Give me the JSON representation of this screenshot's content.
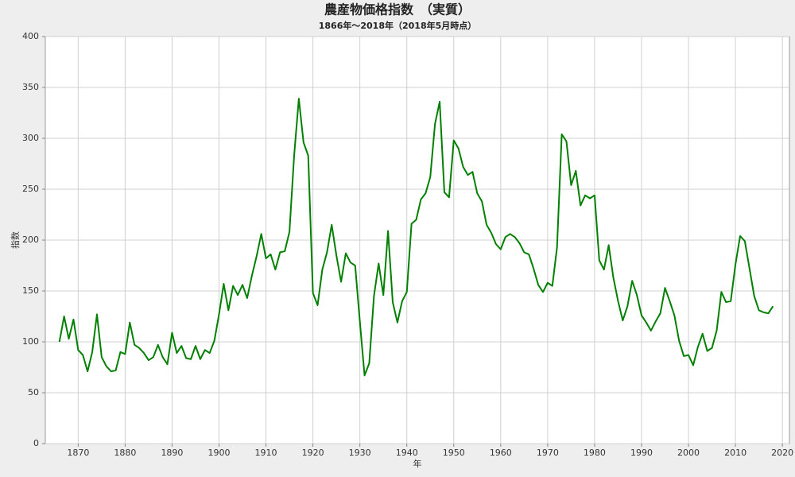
{
  "chart_data": {
    "type": "line",
    "title": "農産物価格指数　（実質）",
    "subtitle": "1866年～2018年（2018年5月時点）",
    "x_label": "年",
    "y_label": "指数",
    "x": [
      1866,
      1867,
      1868,
      1869,
      1870,
      1871,
      1872,
      1873,
      1874,
      1875,
      1876,
      1877,
      1878,
      1879,
      1880,
      1881,
      1882,
      1883,
      1884,
      1885,
      1886,
      1887,
      1888,
      1889,
      1890,
      1891,
      1892,
      1893,
      1894,
      1895,
      1896,
      1897,
      1898,
      1899,
      1900,
      1901,
      1902,
      1903,
      1904,
      1905,
      1906,
      1907,
      1908,
      1909,
      1910,
      1911,
      1912,
      1913,
      1914,
      1915,
      1916,
      1917,
      1918,
      1919,
      1920,
      1921,
      1922,
      1923,
      1924,
      1925,
      1926,
      1927,
      1928,
      1929,
      1930,
      1931,
      1932,
      1933,
      1934,
      1935,
      1936,
      1937,
      1938,
      1939,
      1940,
      1941,
      1942,
      1943,
      1944,
      1945,
      1946,
      1947,
      1948,
      1949,
      1950,
      1951,
      1952,
      1953,
      1954,
      1955,
      1956,
      1957,
      1958,
      1959,
      1960,
      1961,
      1962,
      1963,
      1964,
      1965,
      1966,
      1967,
      1968,
      1969,
      1970,
      1971,
      1972,
      1973,
      1974,
      1975,
      1976,
      1977,
      1978,
      1979,
      1980,
      1981,
      1982,
      1983,
      1984,
      1985,
      1986,
      1987,
      1988,
      1989,
      1990,
      1991,
      1992,
      1993,
      1994,
      1995,
      1996,
      1997,
      1998,
      1999,
      2000,
      2001,
      2002,
      2003,
      2004,
      2005,
      2006,
      2007,
      2008,
      2009,
      2010,
      2011,
      2012,
      2013,
      2014,
      2015,
      2016,
      2017,
      2018
    ],
    "series": [
      {
        "name": "指数",
        "color": "#008000",
        "values": [
          100,
          125,
          103,
          122,
          92,
          87,
          71,
          90,
          127,
          85,
          76,
          71,
          72,
          90,
          88,
          119,
          97,
          94,
          89,
          82,
          85,
          97,
          85,
          78,
          109,
          89,
          96,
          84,
          83,
          96,
          83,
          92,
          89,
          101,
          127,
          157,
          131,
          155,
          146,
          156,
          143,
          165,
          184,
          206,
          182,
          186,
          171,
          188,
          189,
          208,
          283,
          339,
          296,
          283,
          148,
          136,
          171,
          188,
          215,
          185,
          159,
          187,
          178,
          175,
          120,
          67,
          79,
          145,
          177,
          146,
          209,
          139,
          119,
          140,
          149,
          216,
          220,
          240,
          246,
          262,
          314,
          336,
          247,
          242,
          298,
          290,
          272,
          264,
          267,
          246,
          238,
          215,
          207,
          196,
          191,
          203,
          206,
          203,
          197,
          188,
          186,
          172,
          156,
          149,
          158,
          155,
          193,
          304,
          297,
          254,
          268,
          234,
          244,
          241,
          244,
          180,
          171,
          195,
          163,
          140,
          121,
          135,
          160,
          146,
          126,
          119,
          111,
          120,
          128,
          153,
          140,
          126,
          101,
          86,
          87,
          77,
          95,
          108,
          91,
          94,
          111,
          149,
          139,
          140,
          176,
          204,
          199,
          172,
          145,
          131,
          129,
          128,
          135
        ]
      }
    ],
    "xlim": [
      1863,
      2021.5
    ],
    "ylim": [
      0,
      400
    ],
    "xticks": [
      1870,
      1880,
      1890,
      1900,
      1910,
      1920,
      1930,
      1940,
      1950,
      1960,
      1970,
      1980,
      1990,
      2000,
      2010,
      2020
    ],
    "yticks": [
      0,
      50,
      100,
      150,
      200,
      250,
      300,
      350,
      400
    ],
    "grid": true
  }
}
